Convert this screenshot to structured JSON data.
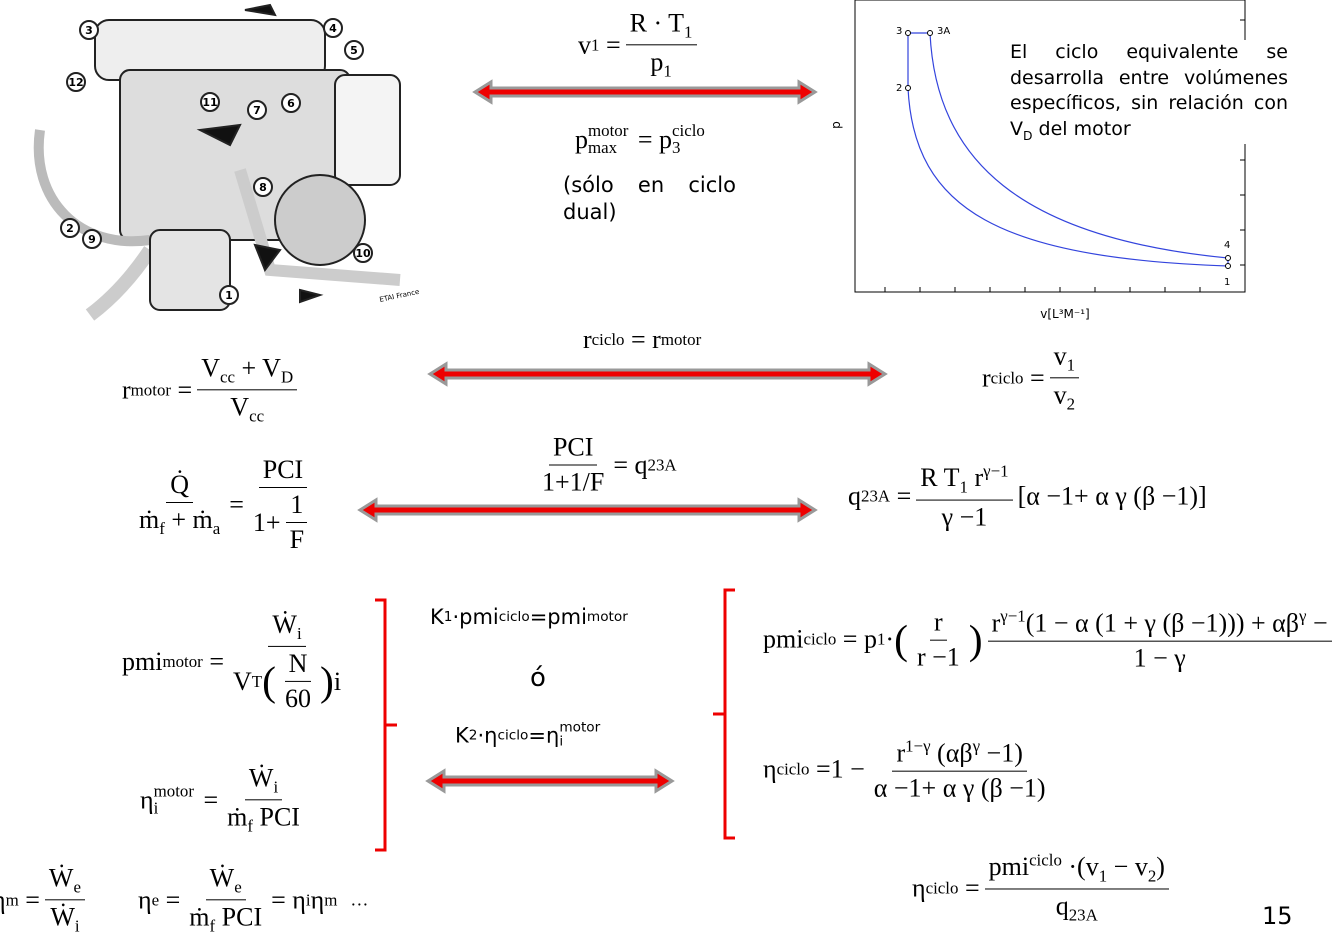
{
  "engine_figure": {
    "callouts": [
      "1",
      "2",
      "3",
      "4",
      "5",
      "6",
      "7",
      "8",
      "9",
      "10",
      "11",
      "12"
    ],
    "credit": "ETAI France"
  },
  "pv_chart": {
    "ylabel": "p",
    "xlabel": "v[L³M⁻¹]",
    "points": [
      "3",
      "3A",
      "2",
      "4",
      "1"
    ]
  },
  "note": {
    "text": "El ciclo equivalente se desarrolla entre volúmenes específicos, sin relación con V",
    "sub": "D",
    "tail": " del motor"
  },
  "equations": {
    "e1": [
      "v",
      "1",
      "=",
      "R · T",
      "1",
      "p",
      "1"
    ],
    "e2": [
      "p",
      "motor",
      "max",
      "=",
      "p",
      "ciclo",
      "3"
    ],
    "e3": [
      "(sólo en ciclo dual)"
    ],
    "e4": [
      "r",
      "ciclo",
      "=",
      "r",
      "motor"
    ],
    "e5": [
      "r",
      "motor",
      "=",
      "V",
      "cc",
      "+ V",
      "D",
      "V",
      "cc"
    ],
    "e6": [
      "r",
      "ciclo",
      "=",
      "v",
      "1",
      "v",
      "2"
    ],
    "e7": [
      "PCI",
      "1+1/F",
      "=",
      "q",
      "23A"
    ],
    "e8": [
      "Q̇",
      "ṁ",
      "f",
      "+ ṁ",
      "a",
      "=",
      "PCI",
      "1+",
      "1",
      "F"
    ],
    "e9": [
      "q",
      "23A",
      "=",
      "R T",
      "1",
      " r",
      "γ−1",
      "γ −1",
      "[α −1+ α γ (β −1)]"
    ],
    "e10": [
      "pmi",
      "motor",
      "=",
      "Ẇ",
      "i",
      "V",
      "T",
      "(",
      "N",
      "60",
      ")",
      "i"
    ],
    "e11": [
      "K",
      "1",
      "·pmi",
      "ciclo",
      "=pmi",
      "motor"
    ],
    "e12": [
      "ó"
    ],
    "e13": [
      "K",
      "2",
      "·η",
      "ciclo",
      "=η",
      "i",
      "motor"
    ],
    "e14": [
      "η",
      "i",
      "motor",
      "=",
      "Ẇ",
      "i",
      "ṁ",
      "f",
      " PCI"
    ],
    "e15": [
      "pmi",
      "ciclo",
      "= p",
      "1",
      " ·",
      "(",
      "r",
      "r −1",
      ")",
      "r",
      "γ−1",
      "(1 − α (1 + γ (β −1))) + αβ",
      "γ",
      " −",
      "1 − γ"
    ],
    "e16": [
      "η",
      "ciclo",
      "=1 −",
      "r",
      "1−γ",
      "(αβ",
      "γ",
      " −1)",
      "α −1+ α γ (β −1)"
    ],
    "e17": [
      "η",
      "m",
      "=",
      "Ẇ",
      "e",
      "Ẇ",
      "i"
    ],
    "e18": [
      "η",
      "e",
      "=",
      "Ẇ",
      "e",
      "ṁ",
      "f",
      " PCI",
      "= η",
      "i",
      " η",
      "m",
      "…"
    ],
    "e19": [
      "η",
      "ciclo",
      "=",
      "pmi",
      "ciclo",
      " ·(v",
      "1",
      " − v",
      "2",
      ")",
      "q",
      "23A"
    ]
  },
  "page_number": "15"
}
